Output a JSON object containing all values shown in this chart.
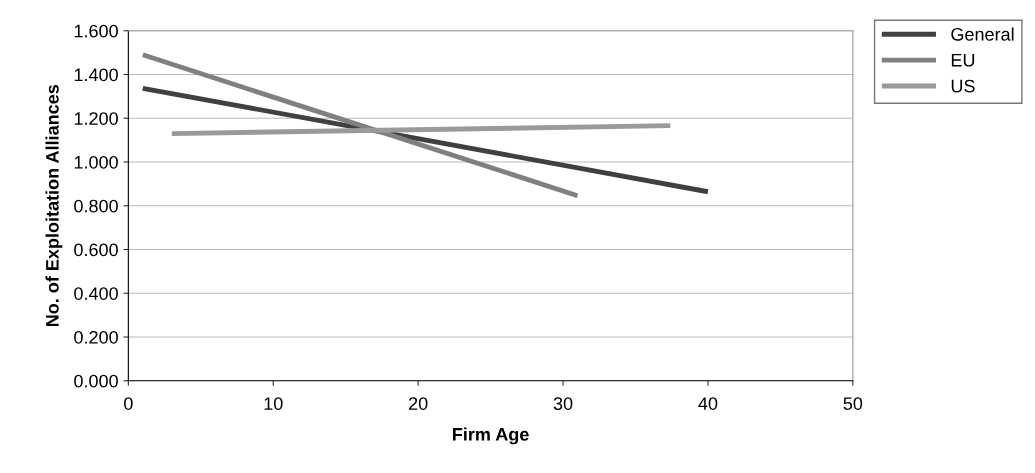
{
  "chart_data": {
    "type": "line",
    "xlabel": "Firm Age",
    "ylabel": "No. of Exploitation Alliances",
    "series": [
      {
        "name": "General",
        "color": "#404040",
        "x": [
          1,
          40
        ],
        "values": [
          1.337,
          0.864
        ]
      },
      {
        "name": "EU",
        "color": "#808080",
        "x": [
          1,
          31
        ],
        "values": [
          1.49,
          0.846
        ]
      },
      {
        "name": "US",
        "color": "#9a9a9a",
        "x": [
          3,
          37.4
        ],
        "values": [
          1.13,
          1.166
        ]
      }
    ],
    "xlim": [
      0,
      50
    ],
    "xticks": [
      0,
      10,
      20,
      30,
      40,
      50
    ],
    "ylim": [
      0,
      1.6
    ],
    "yticks": [
      {
        "value": 0,
        "label": "0.000"
      },
      {
        "value": 0.2,
        "label": "0.200"
      },
      {
        "value": 0.4,
        "label": "0.400"
      },
      {
        "value": 0.6,
        "label": "0.600"
      },
      {
        "value": 0.8,
        "label": "0.800"
      },
      {
        "value": 1.0,
        "label": "1.000"
      },
      {
        "value": 1.2,
        "label": "1.200"
      },
      {
        "value": 1.4,
        "label": "1.400"
      },
      {
        "value": 1.6,
        "label": "1.600"
      }
    ],
    "grid": "y",
    "legend": "top right",
    "marker": "none",
    "line_style": "solid"
  }
}
